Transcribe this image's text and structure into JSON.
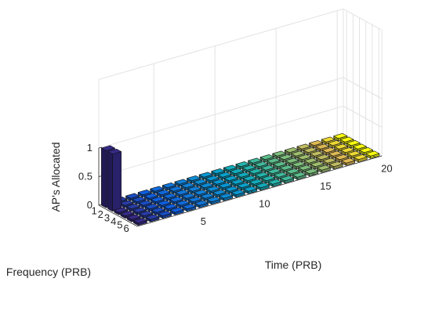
{
  "chart_data": {
    "type": "bar3d",
    "title": "",
    "xlabel": "Time (PRB)",
    "ylabel": "Frequency (PRB)",
    "zlabel": "AP's Allocated",
    "x_ticks": [
      "5",
      "10",
      "15",
      "20"
    ],
    "y_ticks": [
      "1",
      "2",
      "3",
      "4",
      "5",
      "6"
    ],
    "z_ticks": [
      "0",
      "0.5",
      "1"
    ],
    "x_range": [
      1,
      20
    ],
    "y_range": [
      1,
      6
    ],
    "zlim": [
      0,
      1
    ],
    "colormap": "parula",
    "grid": true,
    "note_values": "allocation per (time, frequency) cell; 1 = allocated, 0 = not allocated",
    "allocations": [
      {
        "time": 1,
        "frequency": 1,
        "value": 1
      },
      {
        "time": 1,
        "frequency": 2,
        "value": 1
      },
      {
        "time": 1,
        "frequency": 3,
        "value": 0
      },
      {
        "time": 1,
        "frequency": 4,
        "value": 0
      },
      {
        "time": 1,
        "frequency": 5,
        "value": 0
      },
      {
        "time": 1,
        "frequency": 6,
        "value": 0
      }
    ],
    "default_value": 0
  }
}
